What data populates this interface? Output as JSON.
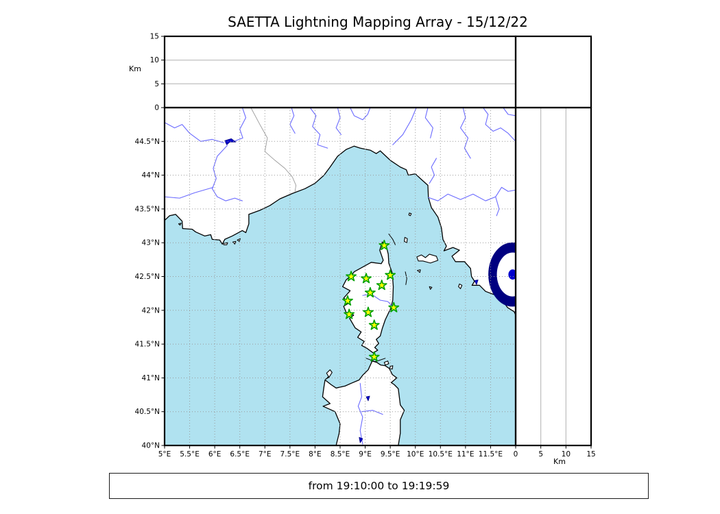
{
  "title": "SAETTA Lightning Mapping Array - 15/12/22",
  "footer": {
    "text": "from 19:10:00 to 19:19:59"
  },
  "axes": {
    "altitude_label": "Km",
    "altitude_ticks": [
      "0",
      "5",
      "10",
      "15"
    ],
    "altitude_tick_values": [
      0,
      5,
      10,
      15
    ],
    "lon_tick_labels": [
      "5°E",
      "5.5°E",
      "6°E",
      "6.5°E",
      "7°E",
      "7.5°E",
      "8°E",
      "8.5°E",
      "9°E",
      "9.5°E",
      "10°E",
      "10.5°E",
      "11°E",
      "11.5°E"
    ],
    "lon_tick_values": [
      5,
      5.5,
      6,
      6.5,
      7,
      7.5,
      8,
      8.5,
      9,
      9.5,
      10,
      10.5,
      11,
      11.5
    ],
    "lat_tick_labels": [
      "40°N",
      "40.5°N",
      "41°N",
      "41.5°N",
      "42°N",
      "42.5°N",
      "43°N",
      "43.5°N",
      "44°N",
      "44.5°N"
    ],
    "lat_tick_values": [
      40,
      40.5,
      41,
      41.5,
      42,
      42.5,
      43,
      43.5,
      44,
      44.5
    ]
  },
  "colors": {
    "sea": "#b0e2f0",
    "land": "#ffffff",
    "coast": "#000000",
    "river": "#6a6aff",
    "lake": "#0000cd",
    "grid": "#999999",
    "country_border": "#9a9a9a",
    "star_fill": "#ffff00",
    "star_edge": "#00a000"
  },
  "chart_data": {
    "type": "scatter",
    "title": "SAETTA Lightning Mapping Array - 15/12/22",
    "time_window": "from 19:10:00 to 19:19:59",
    "panels": [
      {
        "id": "altitude-vs-longitude",
        "position": "top",
        "xlim": [
          5,
          12
        ],
        "ylim": [
          0,
          15
        ],
        "ylabel": "Km",
        "yticks": [
          0,
          5,
          10,
          15
        ],
        "grid": "horizontal solid at 5 and 10",
        "lightning_points": []
      },
      {
        "id": "map",
        "position": "main",
        "xlim_deg_e": [
          5,
          12
        ],
        "ylim_deg_n": [
          40,
          45
        ],
        "xticks": [
          5,
          5.5,
          6,
          6.5,
          7,
          7.5,
          8,
          8.5,
          9,
          9.5,
          10,
          10.5,
          11,
          11.5
        ],
        "yticks": [
          40,
          40.5,
          41,
          41.5,
          42,
          42.5,
          43,
          43.5,
          44,
          44.5
        ],
        "grid": "dotted every 0.5 degree",
        "lightning_points": []
      },
      {
        "id": "altitude-vs-latitude",
        "position": "right",
        "xlim": [
          0,
          15
        ],
        "ylim_deg_n": [
          40,
          45
        ],
        "xlabel": "Km",
        "xticks": [
          0,
          5,
          10,
          15
        ],
        "grid": "vertical solid at 5 and 10",
        "lightning_points": []
      },
      {
        "id": "histogram-box",
        "position": "top-right",
        "empty": true
      }
    ],
    "stations": {
      "name": "LMA station markers",
      "marker": "star",
      "fill": "#ffff00",
      "edge": "#00a000",
      "locations_lon_lat": [
        [
          9.38,
          42.96
        ],
        [
          8.72,
          42.5
        ],
        [
          9.02,
          42.47
        ],
        [
          9.5,
          42.52
        ],
        [
          9.33,
          42.37
        ],
        [
          9.1,
          42.26
        ],
        [
          8.65,
          42.14
        ],
        [
          9.57,
          42.04
        ],
        [
          8.68,
          41.94
        ],
        [
          9.06,
          41.97
        ],
        [
          9.18,
          41.78
        ],
        [
          9.18,
          41.31
        ]
      ]
    }
  }
}
